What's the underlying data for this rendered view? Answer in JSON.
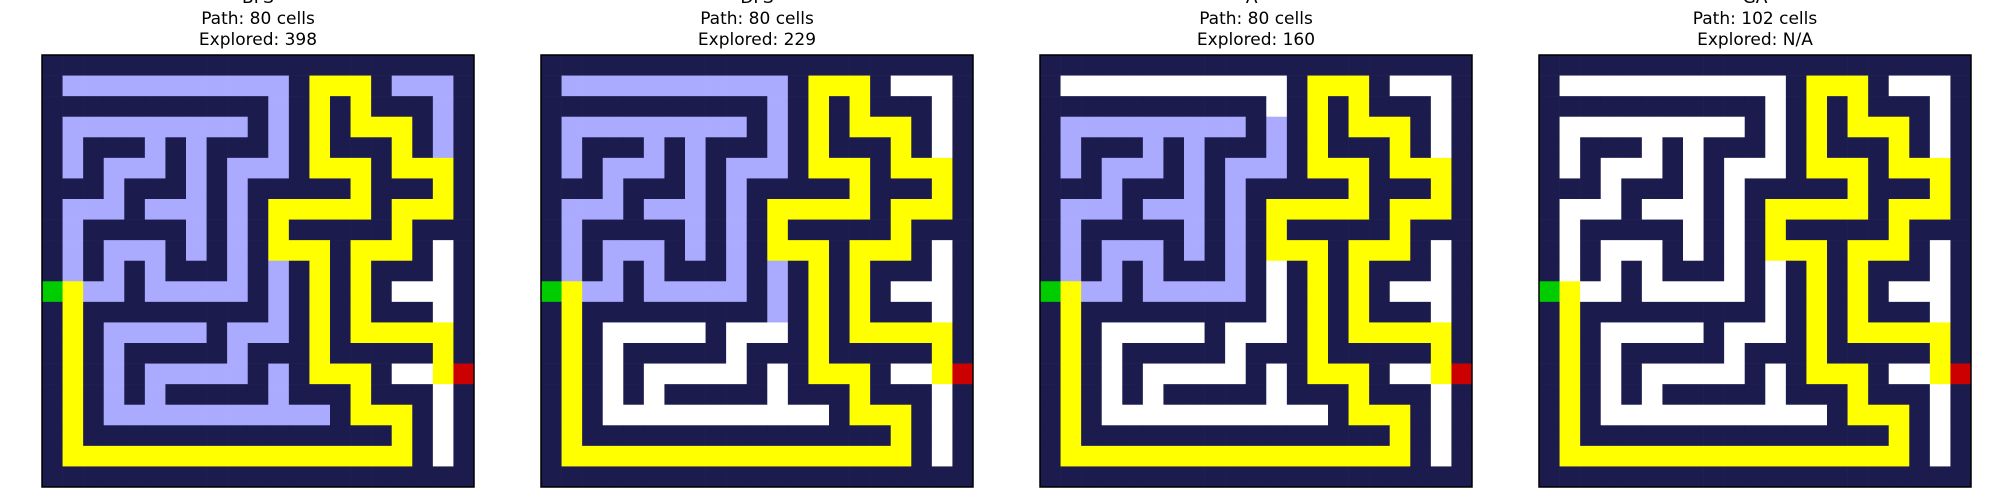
{
  "panels": [
    {
      "algorithm": "BFS",
      "path_text": "Path: 80 cells",
      "explored_text": "Explored: 398",
      "path_length": 80,
      "explored": 398
    },
    {
      "algorithm": "DFS",
      "path_text": "Path: 80 cells",
      "explored_text": "Explored: 229",
      "path_length": 80,
      "explored": 229
    },
    {
      "algorithm": "A*",
      "path_text": "Path: 80 cells",
      "explored_text": "Explored: 160",
      "path_length": 80,
      "explored": 160
    },
    {
      "algorithm": "GA",
      "path_text": "Path: 102 cells",
      "explored_text": "Explored: N/A",
      "path_length": 102,
      "explored": "N/A"
    }
  ],
  "colors": {
    "wall": "#1b1b4d",
    "open": "#ffffff",
    "explored": "#aaaaff",
    "path": "#ffff00",
    "start": "#00cc00",
    "goal": "#cc0000"
  }
}
